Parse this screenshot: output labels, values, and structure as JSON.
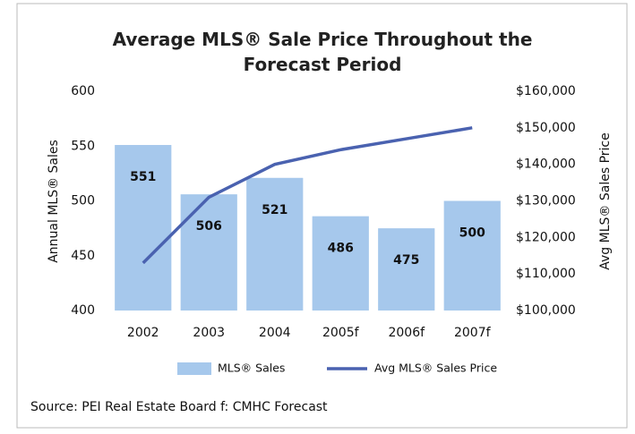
{
  "chart_data": {
    "type": "bar",
    "title": "Average MLS® Sale Price Throughout the Forecast Period",
    "y_label": "Annual MLS® Sales",
    "y2_label": "Avg MLS® Sales Price",
    "source": "Source: PEI Real Estate Board  f: CMHC Forecast",
    "categories": [
      "2002",
      "2003",
      "2004",
      "2005f",
      "2006f",
      "2007f"
    ],
    "series": [
      {
        "name": "MLS® Sales",
        "type": "bar",
        "color": "#a6c8ec",
        "values": [
          551,
          506,
          521,
          486,
          475,
          500
        ]
      },
      {
        "name": "Avg MLS® Sales Price",
        "type": "line",
        "axis": "y2",
        "color": "#4a62b0",
        "values": [
          113000,
          131000,
          140000,
          144000,
          147000,
          150000
        ]
      }
    ],
    "ylim": [
      400,
      600
    ],
    "yticks": [
      400,
      450,
      500,
      550,
      600
    ],
    "y2lim": [
      100000,
      160000
    ],
    "y2ticks": [
      {
        "value": 100000,
        "label": "$100,000"
      },
      {
        "value": 110000,
        "label": "$110,000"
      },
      {
        "value": 120000,
        "label": "$120,000"
      },
      {
        "value": 130000,
        "label": "$130,000"
      },
      {
        "value": 140000,
        "label": "$140,000"
      },
      {
        "value": 150000,
        "label": "$150,000"
      },
      {
        "value": 160000,
        "label": "$160,000"
      }
    ],
    "legend": "bottom",
    "grid": false
  }
}
